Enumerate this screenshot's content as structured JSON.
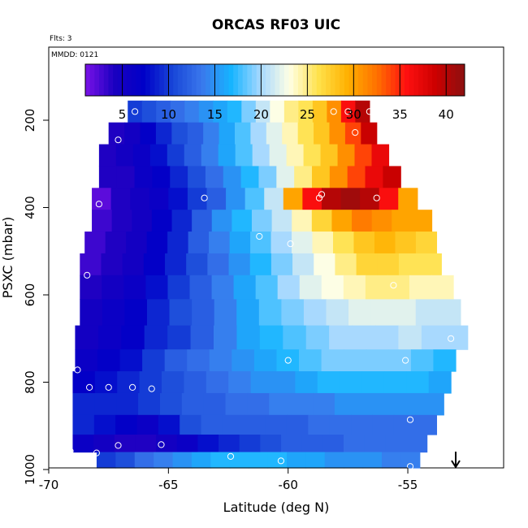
{
  "chart_data": {
    "type": "heatmap",
    "title": "ORCAS RF03 UIC",
    "annotations": {
      "flights": "Flts: 3",
      "mmdd": "MMDD: 0121"
    },
    "xlabel": "Latitude (deg N)",
    "ylabel": "PSXC (mbar)",
    "xlim": [
      -70,
      -51
    ],
    "ylim": [
      1000,
      75
    ],
    "y_reversed": true,
    "x_ticks": [
      -70,
      -65,
      -60,
      -55
    ],
    "x_tick_labels": [
      "-70",
      "-65",
      "-60",
      "-55"
    ],
    "y_ticks": [
      200,
      400,
      600,
      800,
      1000
    ],
    "y_tick_labels": [
      "200",
      "400",
      "600",
      "800",
      "1000"
    ],
    "colorbar": {
      "range": [
        1,
        42
      ],
      "ticks": [
        5,
        10,
        15,
        20,
        25,
        30,
        35,
        40
      ],
      "tick_labels": [
        "5",
        "10",
        "15",
        "20",
        "25",
        "30",
        "35",
        "40"
      ],
      "colors": [
        "#7b12e8",
        "#1a00c0",
        "#0000c8",
        "#1846d8",
        "#3a78ec",
        "#16b4ff",
        "#a6d8ff",
        "#ffffe4",
        "#ffe14a",
        "#ffb000",
        "#ff7000",
        "#ff1010",
        "#cc0000",
        "#8c1010"
      ]
    },
    "rows": [
      {
        "p": 180,
        "lat_min": -66.7,
        "lat_max": -56.6,
        "values": [
          10,
          11,
          12,
          13,
          14,
          15,
          16,
          17,
          19,
          21,
          23,
          25,
          26,
          28,
          31,
          36,
          40
        ]
      },
      {
        "p": 230,
        "lat_min": -67.5,
        "lat_max": -56.3,
        "values": [
          4,
          5,
          7,
          9,
          11,
          12,
          14,
          16,
          18,
          20,
          22,
          24,
          26,
          28,
          31,
          34,
          39
        ]
      },
      {
        "p": 280,
        "lat_min": -67.9,
        "lat_max": -55.8,
        "values": [
          4,
          5,
          6,
          8,
          10,
          12,
          14,
          16,
          18,
          20,
          22,
          24,
          26,
          28,
          31,
          34,
          37
        ]
      },
      {
        "p": 330,
        "lat_min": -67.9,
        "lat_max": -55.3,
        "values": [
          4,
          4,
          6,
          7,
          9,
          11,
          13,
          15,
          17,
          19,
          22,
          25,
          28,
          31,
          34,
          37,
          39
        ]
      },
      {
        "p": 380,
        "lat_min": -68.2,
        "lat_max": -54.6,
        "values": [
          2,
          4,
          5,
          6,
          8,
          10,
          12,
          15,
          18,
          21,
          30,
          36,
          40,
          41,
          40,
          36,
          30
        ]
      },
      {
        "p": 430,
        "lat_min": -68.2,
        "lat_max": -54.0,
        "values": [
          3,
          4,
          5,
          7,
          9,
          12,
          15,
          17,
          19,
          21,
          24,
          27,
          30,
          32,
          31,
          30,
          30
        ]
      },
      {
        "p": 480,
        "lat_min": -68.5,
        "lat_max": -53.8,
        "values": [
          3,
          4,
          5,
          7,
          9,
          12,
          14,
          16,
          18,
          20,
          22,
          24,
          26,
          28,
          29,
          28,
          27
        ]
      },
      {
        "p": 530,
        "lat_min": -68.7,
        "lat_max": -53.6,
        "values": [
          3,
          4,
          5,
          7,
          9,
          11,
          13,
          15,
          17,
          19,
          21,
          23,
          25,
          27,
          27,
          26,
          26
        ]
      },
      {
        "p": 580,
        "lat_min": -68.7,
        "lat_max": -53.1,
        "values": [
          4,
          5,
          6,
          8,
          10,
          12,
          14,
          16,
          18,
          20,
          22,
          23,
          24,
          25,
          25,
          24,
          24
        ]
      },
      {
        "p": 640,
        "lat_min": -68.7,
        "lat_max": -52.8,
        "values": [
          5,
          6,
          7,
          9,
          11,
          12,
          14,
          16,
          18,
          19,
          20,
          21,
          22,
          22,
          22,
          21,
          21
        ]
      },
      {
        "p": 700,
        "lat_min": -68.9,
        "lat_max": -52.5,
        "values": [
          5,
          6,
          7,
          9,
          10,
          12,
          14,
          16,
          17,
          18,
          19,
          20,
          20,
          20,
          21,
          20,
          20
        ]
      },
      {
        "p": 750,
        "lat_min": -68.9,
        "lat_max": -53.0,
        "values": [
          6,
          7,
          8,
          10,
          12,
          13,
          14,
          15,
          16,
          17,
          18,
          19,
          19,
          19,
          19,
          18,
          17
        ]
      },
      {
        "p": 800,
        "lat_min": -69.0,
        "lat_max": -53.2,
        "values": [
          7,
          8,
          9,
          10,
          11,
          12,
          13,
          14,
          15,
          15,
          16,
          17,
          17,
          17,
          17,
          17,
          16
        ]
      },
      {
        "p": 850,
        "lat_min": -69.0,
        "lat_max": -53.5,
        "values": [
          9,
          9,
          9,
          10,
          11,
          12,
          12,
          13,
          13,
          14,
          14,
          14,
          15,
          15,
          15,
          15,
          15
        ]
      },
      {
        "p": 900,
        "lat_min": -69.0,
        "lat_max": -53.8,
        "values": [
          9,
          8,
          7,
          6,
          8,
          11,
          12,
          12,
          12,
          12,
          12,
          13,
          13,
          13,
          13,
          13,
          13
        ]
      },
      {
        "p": 940,
        "lat_min": -69.0,
        "lat_max": -54.2,
        "values": [
          6,
          5,
          4,
          4,
          5,
          6,
          8,
          9,
          10,
          11,
          12,
          12,
          12,
          13,
          13,
          13,
          13
        ]
      },
      {
        "p": 980,
        "lat_min": -68.0,
        "lat_max": -54.5,
        "values": [
          10,
          11,
          13,
          14,
          15,
          16,
          17,
          17,
          17,
          17,
          16,
          16,
          15,
          15,
          15,
          14,
          14
        ]
      }
    ],
    "circle_markers": [
      {
        "lat": -66.4,
        "p": 180
      },
      {
        "lat": -58.1,
        "p": 180
      },
      {
        "lat": -57.5,
        "p": 180
      },
      {
        "lat": -56.6,
        "p": 180
      },
      {
        "lat": -67.1,
        "p": 245
      },
      {
        "lat": -57.2,
        "p": 228
      },
      {
        "lat": -67.9,
        "p": 392
      },
      {
        "lat": -63.5,
        "p": 378
      },
      {
        "lat": -58.7,
        "p": 378
      },
      {
        "lat": -58.6,
        "p": 370
      },
      {
        "lat": -56.3,
        "p": 378
      },
      {
        "lat": -61.2,
        "p": 466
      },
      {
        "lat": -59.9,
        "p": 483
      },
      {
        "lat": -68.4,
        "p": 555
      },
      {
        "lat": -55.6,
        "p": 578
      },
      {
        "lat": -53.2,
        "p": 700
      },
      {
        "lat": -60.0,
        "p": 750
      },
      {
        "lat": -55.1,
        "p": 750
      },
      {
        "lat": -68.8,
        "p": 772
      },
      {
        "lat": -68.3,
        "p": 812
      },
      {
        "lat": -67.5,
        "p": 812
      },
      {
        "lat": -66.5,
        "p": 812
      },
      {
        "lat": -65.7,
        "p": 815
      },
      {
        "lat": -54.9,
        "p": 886
      },
      {
        "lat": -67.1,
        "p": 945
      },
      {
        "lat": -65.3,
        "p": 943
      },
      {
        "lat": -69.1,
        "p": 958
      },
      {
        "lat": -68.0,
        "p": 962
      },
      {
        "lat": -62.4,
        "p": 970
      },
      {
        "lat": -60.3,
        "p": 980
      },
      {
        "lat": -54.9,
        "p": 993
      }
    ],
    "arrow_marker": {
      "lat": -53.0
    }
  }
}
